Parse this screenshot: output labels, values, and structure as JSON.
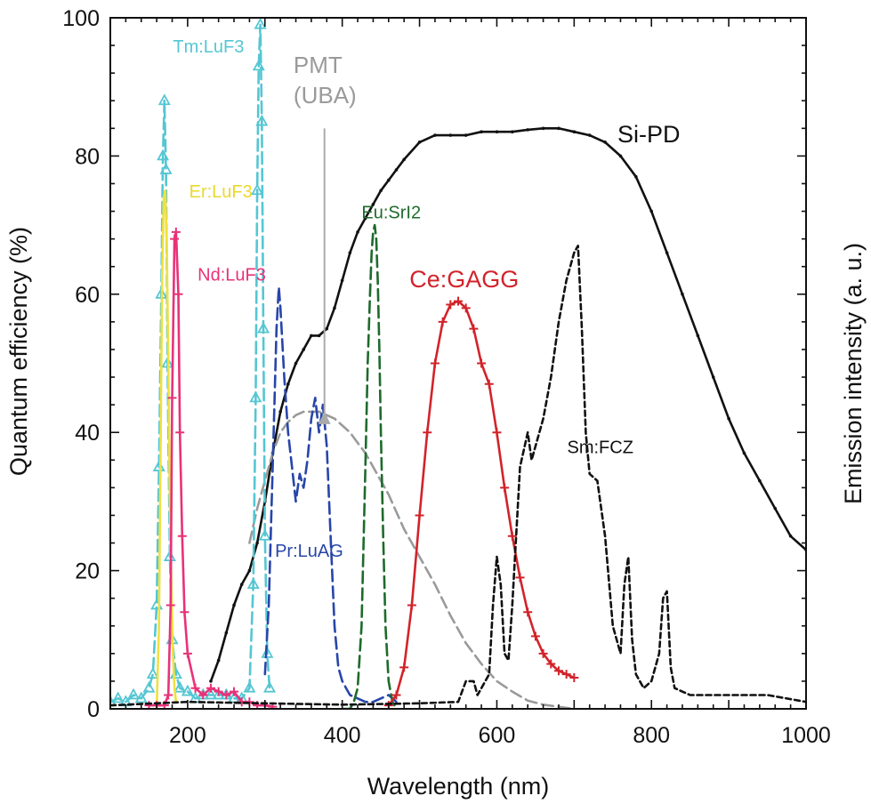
{
  "chart_data": {
    "type": "line",
    "title": "",
    "xlabel": "Wavelength (nm)",
    "ylabel": "Quantum efficiency (%)",
    "y2label": "Emission intensity (a. u.)",
    "xlim": [
      100,
      1000
    ],
    "ylim": [
      0,
      100
    ],
    "xticks": [
      200,
      400,
      600,
      800,
      1000
    ],
    "yticks": [
      0,
      20,
      40,
      60,
      80,
      100
    ],
    "grid": false,
    "annotation_arrow": {
      "from": [
        377,
        84
      ],
      "to": [
        377,
        43
      ]
    },
    "series": [
      {
        "name": "Si-PD",
        "color": "#111111",
        "style": "solid",
        "marker": "dot",
        "label_at": [
          756,
          82
        ],
        "x": [
          230,
          240,
          250,
          260,
          270,
          280,
          290,
          300,
          310,
          320,
          330,
          340,
          350,
          360,
          370,
          380,
          390,
          400,
          410,
          420,
          430,
          440,
          450,
          460,
          470,
          480,
          500,
          520,
          540,
          560,
          580,
          600,
          620,
          640,
          660,
          680,
          700,
          720,
          740,
          760,
          780,
          800,
          820,
          840,
          860,
          880,
          900,
          920,
          940,
          960,
          980,
          1000
        ],
        "y": [
          4,
          7,
          11,
          15,
          18,
          20,
          24,
          30,
          37,
          43,
          47,
          50,
          52,
          54,
          54,
          55,
          58,
          62,
          66,
          69,
          71,
          73,
          75,
          76.5,
          78,
          79.5,
          82,
          83,
          83,
          83,
          83.5,
          83.5,
          83.5,
          83.8,
          84,
          84,
          83.5,
          83,
          82,
          80,
          77,
          72,
          66,
          60,
          54,
          48,
          42,
          37,
          33,
          29,
          25,
          23
        ]
      },
      {
        "name": "PMT (UBA)",
        "label_lines": [
          "PMT",
          "(UBA)"
        ],
        "color": "#9a9a9a",
        "style": "dash",
        "label_at": [
          337,
          92
        ],
        "x": [
          280,
          290,
          300,
          310,
          320,
          330,
          340,
          350,
          360,
          370,
          380,
          390,
          400,
          410,
          420,
          430,
          440,
          450,
          460,
          470,
          480,
          490,
          500,
          520,
          540,
          560,
          580,
          600,
          620,
          640,
          660,
          680,
          700
        ],
        "y": [
          24,
          29,
          33,
          37,
          40,
          41.5,
          42.5,
          43,
          43,
          43,
          42.5,
          42,
          41,
          40,
          38.5,
          37,
          35,
          33,
          31,
          28.5,
          26,
          24,
          22,
          18,
          13.5,
          9.5,
          6.5,
          4,
          2.5,
          1.2,
          0.6,
          0.3,
          0
        ]
      },
      {
        "name": "Tm:LuF3",
        "color": "#55c6d3",
        "style": "dash",
        "marker": "triangle",
        "label_at": [
          181,
          95
        ],
        "x": [
          100,
          110,
          120,
          130,
          140,
          150,
          155,
          160,
          163,
          166,
          168,
          170,
          172,
          174,
          177,
          180,
          185,
          190,
          200,
          210,
          220,
          230,
          240,
          250,
          260,
          270,
          280,
          285,
          288,
          290,
          292,
          294,
          296,
          298,
          300,
          303,
          306
        ],
        "y": [
          1,
          1.5,
          1,
          2,
          1.5,
          3,
          5,
          15,
          35,
          60,
          80,
          88,
          78,
          50,
          22,
          10,
          5,
          3,
          2.5,
          1.5,
          2,
          2,
          2,
          2,
          1.5,
          1.5,
          3,
          18,
          45,
          75,
          93,
          99,
          85,
          55,
          25,
          8,
          3
        ]
      },
      {
        "name": "Er:LuF3",
        "color": "#f0e040",
        "style": "solid",
        "label_at": [
          202,
          74
        ],
        "x": [
          160,
          163,
          165,
          167,
          169,
          171,
          173,
          175,
          177,
          179,
          181,
          183,
          185
        ],
        "y": [
          0,
          12,
          38,
          62,
          74,
          75,
          68,
          50,
          30,
          18,
          8,
          3,
          1
        ]
      },
      {
        "name": "Nd:LuF3",
        "color": "#e83278",
        "style": "solid",
        "marker": "plus",
        "label_at": [
          213,
          62
        ],
        "x": [
          150,
          160,
          170,
          175,
          178,
          180,
          183,
          185,
          188,
          190,
          193,
          196,
          200,
          210,
          220,
          230,
          240,
          250,
          260,
          270,
          280,
          290,
          300,
          310
        ],
        "y": [
          0.5,
          0.5,
          0.5,
          2,
          15,
          45,
          68,
          69,
          60,
          40,
          25,
          14,
          8,
          3,
          2,
          3,
          2.5,
          2,
          2.5,
          1,
          1,
          0.5,
          0.5,
          0.3
        ]
      },
      {
        "name": "Pr:LuAG",
        "color": "#2846a8",
        "style": "dash",
        "label_at": [
          313,
          22
        ],
        "x": [
          300,
          305,
          310,
          315,
          318,
          320,
          325,
          330,
          335,
          340,
          345,
          350,
          355,
          360,
          365,
          370,
          375,
          380,
          385,
          390,
          395,
          400,
          405,
          410,
          420,
          430,
          440,
          450,
          460,
          470
        ],
        "y": [
          5,
          15,
          35,
          55,
          61,
          58,
          48,
          40,
          35,
          30,
          34,
          32,
          36,
          42,
          45,
          40,
          44,
          38,
          25,
          12,
          6,
          4,
          3,
          2,
          1.5,
          1,
          1,
          1.5,
          2,
          1
        ]
      },
      {
        "name": "Eu:SrI2",
        "color": "#1e6b2c",
        "style": "dash",
        "label_at": [
          425,
          71
        ],
        "x": [
          400,
          410,
          415,
          420,
          425,
          430,
          433,
          436,
          438,
          440,
          442,
          444,
          446,
          448,
          450,
          453,
          456,
          460,
          465,
          470
        ],
        "y": [
          0,
          0,
          1,
          3,
          12,
          35,
          50,
          60,
          66,
          69,
          70,
          68,
          62,
          52,
          40,
          25,
          12,
          4,
          1,
          0
        ]
      },
      {
        "name": "Ce:GAGG",
        "color": "#d2232a",
        "style": "solid",
        "marker": "plus",
        "label_at": [
          487,
          61
        ],
        "x": [
          460,
          470,
          480,
          490,
          500,
          510,
          520,
          530,
          540,
          550,
          560,
          570,
          580,
          590,
          600,
          610,
          620,
          630,
          640,
          650,
          660,
          670,
          680,
          690,
          700
        ],
        "y": [
          0.5,
          2,
          6,
          15,
          28,
          40,
          50,
          56,
          58.5,
          59,
          58,
          55,
          50,
          47,
          40,
          32,
          25,
          19,
          14,
          10.5,
          8,
          6.5,
          5.5,
          5,
          4.5
        ]
      },
      {
        "name": "Sm:FCZ",
        "color": "#111111",
        "style": "dash",
        "label_at": [
          691,
          37
        ],
        "x": [
          100,
          200,
          300,
          400,
          500,
          550,
          560,
          570,
          575,
          580,
          590,
          595,
          600,
          605,
          610,
          615,
          620,
          630,
          640,
          645,
          650,
          660,
          670,
          680,
          690,
          700,
          705,
          710,
          715,
          720,
          730,
          740,
          750,
          760,
          765,
          770,
          775,
          780,
          790,
          800,
          810,
          815,
          820,
          825,
          830,
          850,
          900,
          950,
          1000
        ],
        "y": [
          0.5,
          1,
          0.8,
          0.6,
          0.8,
          1,
          4,
          4,
          2,
          3,
          5,
          15,
          22,
          18,
          8,
          7,
          15,
          35,
          40,
          36,
          38,
          42,
          48,
          56,
          62,
          66,
          67,
          55,
          40,
          34,
          33,
          25,
          12,
          8,
          18,
          22,
          10,
          5,
          3,
          4,
          8,
          16,
          17,
          6,
          3,
          2,
          2,
          2,
          1
        ]
      }
    ]
  }
}
